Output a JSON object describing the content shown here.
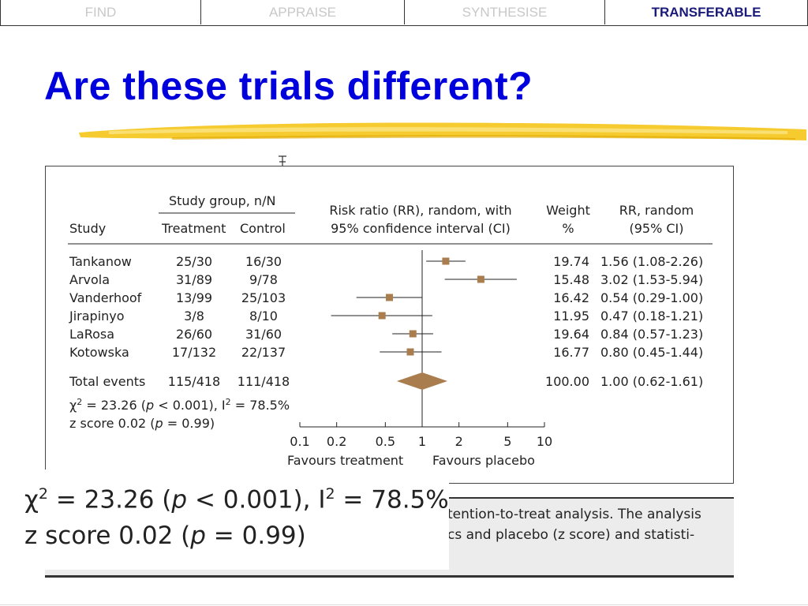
{
  "nav": {
    "tabs": [
      {
        "label": "FIND",
        "active": false
      },
      {
        "label": "APPRAISE",
        "active": false
      },
      {
        "label": "SYNTHESISE",
        "active": false
      },
      {
        "label": "TRANSFERABLE",
        "active": true
      }
    ]
  },
  "slide": {
    "title": "Are these trials different?",
    "title_color": "#0000dd",
    "brush_color": "#f5c518"
  },
  "chart_data": {
    "type": "forest",
    "header": {
      "study_group": "Study group, n/N",
      "study": "Study",
      "treatment": "Treatment",
      "control": "Control",
      "rr_line1": "Risk ratio (RR), random, with",
      "rr_line2": "95% confidence interval (CI)",
      "weight_line1": "Weight",
      "weight_line2": "%",
      "rrr_line1": "RR, random",
      "rrr_line2": "(95% CI)"
    },
    "studies": [
      {
        "name": "Tankanow",
        "treatment": "25/30",
        "control": "16/30",
        "weight": "19.74",
        "rr_text": "1.56 (1.08-2.26)",
        "rr": 1.56,
        "lo": 1.08,
        "hi": 2.26
      },
      {
        "name": "Arvola",
        "treatment": "31/89",
        "control": "9/78",
        "weight": "15.48",
        "rr_text": "3.02 (1.53-5.94)",
        "rr": 3.02,
        "lo": 1.53,
        "hi": 5.94
      },
      {
        "name": "Vanderhoof",
        "treatment": "13/99",
        "control": "25/103",
        "weight": "16.42",
        "rr_text": "0.54 (0.29-1.00)",
        "rr": 0.54,
        "lo": 0.29,
        "hi": 1.0
      },
      {
        "name": "Jirapinyo",
        "treatment": "3/8",
        "control": "8/10",
        "weight": "11.95",
        "rr_text": "0.47 (0.18-1.21)",
        "rr": 0.47,
        "lo": 0.18,
        "hi": 1.21
      },
      {
        "name": "LaRosa",
        "treatment": "26/60",
        "control": "31/60",
        "weight": "19.64",
        "rr_text": "0.84 (0.57-1.23)",
        "rr": 0.84,
        "lo": 0.57,
        "hi": 1.23
      },
      {
        "name": "Kotowska",
        "treatment": "17/132",
        "control": "22/137",
        "weight": "16.77",
        "rr_text": "0.80 (0.45-1.44)",
        "rr": 0.8,
        "lo": 0.45,
        "hi": 1.44
      }
    ],
    "total": {
      "label": "Total events",
      "treatment": "115/418",
      "control": "111/418",
      "weight": "100.00",
      "rr_text": "1.00 (0.62-1.61)",
      "rr": 1.0,
      "lo": 0.62,
      "hi": 1.61
    },
    "heterogeneity": {
      "chi": "χ",
      "sq": "2",
      "p1_pre": " = 23.26 (",
      "p": "p",
      "p1_post": " < 0.001), I",
      "i_sup": "2",
      "i_val": " = 78.5%"
    },
    "zscore": {
      "pre": "z score 0.02 (",
      "p": "p",
      "post": " = 0.99)"
    },
    "x_ticks": [
      "0.1",
      "0.2",
      "0.5",
      "1",
      "2",
      "5",
      "10"
    ],
    "x_tick_values": [
      0.1,
      0.2,
      0.5,
      1,
      2,
      5,
      10
    ],
    "xlim": [
      0.1,
      10
    ],
    "scale": "log",
    "favours_left": "Favours treatment",
    "favours_right": "Favours placebo",
    "marker_color": "#a97d4e"
  },
  "caption": {
    "line1": "tention-to-treat analysis. The analysis",
    "line2": "cs and placebo (z score) and statisti-",
    "line3": "("
  }
}
